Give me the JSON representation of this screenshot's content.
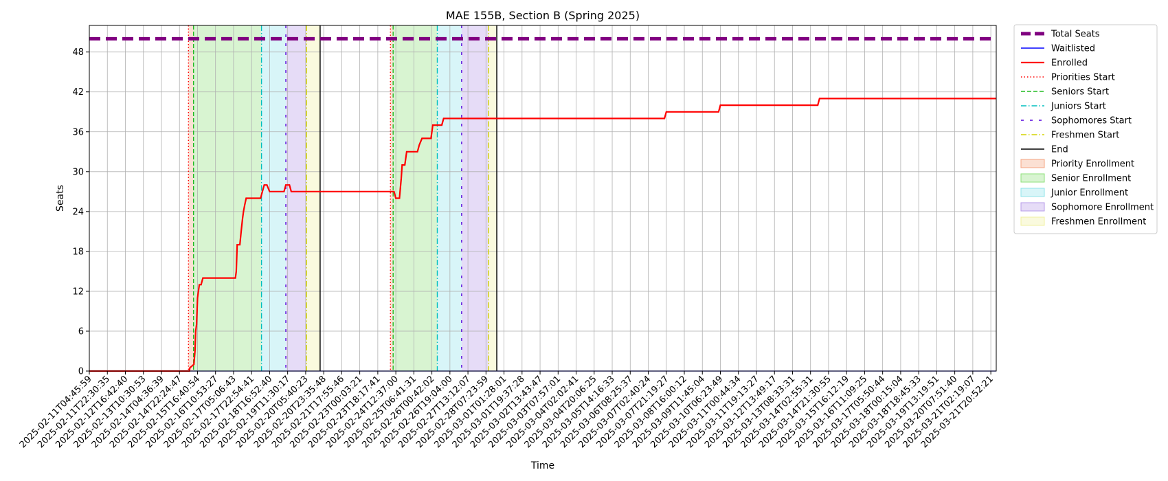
{
  "chart_data": {
    "type": "line",
    "title": "MAE 155B, Section B (Spring 2025)",
    "xlabel": "Time",
    "ylabel": "Seats",
    "ylim": [
      0,
      52
    ],
    "yticks": [
      0,
      6,
      12,
      18,
      24,
      30,
      36,
      42,
      48
    ],
    "x_ticks": [
      "2025-02-11T04:45:59",
      "2025-02-11T22:30:35",
      "2025-02-12T16:42:40",
      "2025-02-13T10:30:53",
      "2025-02-14T04:36:39",
      "2025-02-14T22:24:47",
      "2025-02-15T16:40:54",
      "2025-02-16T10:53:27",
      "2025-02-17T05:06:43",
      "2025-02-17T22:54:41",
      "2025-02-18T16:52:40",
      "2025-02-19T11:30:17",
      "2025-02-20T05:40:23",
      "2025-02-20T23:35:48",
      "2025-02-21T17:55:46",
      "2025-02-23T00:03:21",
      "2025-02-23T18:17:41",
      "2025-02-24T12:37:00",
      "2025-02-25T06:41:31",
      "2025-02-26T00:42:02",
      "2025-02-26T19:04:00",
      "2025-02-27T13:12:07",
      "2025-02-28T07:23:59",
      "2025-03-01T01:28:01",
      "2025-03-01T19:37:28",
      "2025-03-02T13:43:47",
      "2025-03-03T07:57:01",
      "2025-03-04T02:02:41",
      "2025-03-04T20:06:25",
      "2025-03-05T14:16:33",
      "2025-03-06T08:25:37",
      "2025-03-07T02:40:24",
      "2025-03-07T21:19:27",
      "2025-03-08T16:00:12",
      "2025-03-09T11:45:04",
      "2025-03-10T06:23:49",
      "2025-03-11T00:44:34",
      "2025-03-11T19:13:27",
      "2025-03-12T13:49:17",
      "2025-03-13T08:33:31",
      "2025-03-14T02:55:31",
      "2025-03-14T21:30:55",
      "2025-03-15T16:12:19",
      "2025-03-16T11:09:25",
      "2025-03-17T05:50:44",
      "2025-03-18T00:15:04",
      "2025-03-18T18:45:33",
      "2025-03-19T13:19:51",
      "2025-03-20T07:51:40",
      "2025-03-21T02:19:07",
      "2025-03-21T20:52:21"
    ],
    "x_range": [
      0,
      50.3
    ],
    "total_seats": 50,
    "series": [
      {
        "name": "Enrolled",
        "color": "#ff0000",
        "x": [
          0,
          5.55,
          5.58,
          5.8,
          5.86,
          5.9,
          5.95,
          6.0,
          6.05,
          6.1,
          6.2,
          6.3,
          6.45,
          6.6,
          8.1,
          8.15,
          8.2,
          8.35,
          8.42,
          8.5,
          8.55,
          8.62,
          8.7,
          8.8,
          9.5,
          9.6,
          9.7,
          9.85,
          10.0,
          10.1,
          10.8,
          10.9,
          11.1,
          11.2,
          16.9,
          17.0,
          17.2,
          17.3,
          17.35,
          17.5,
          17.6,
          18.2,
          18.3,
          18.45,
          18.55,
          18.95,
          19.05,
          19.55,
          19.65,
          21.0,
          31.9,
          32.0,
          34.9,
          35.0,
          40.4,
          40.5,
          50.3
        ],
        "y": [
          0,
          0,
          0.5,
          1,
          3,
          6,
          7,
          11,
          12,
          13,
          13,
          14,
          14,
          14,
          14,
          15,
          19,
          19,
          21,
          23,
          24,
          25,
          26,
          26,
          26,
          27,
          28,
          28,
          27,
          27,
          27,
          28,
          28,
          27,
          27,
          26,
          26,
          29,
          31,
          31,
          33,
          33,
          34,
          35,
          35,
          35,
          37,
          37,
          38,
          38,
          38,
          39,
          39,
          40,
          40,
          41,
          41
        ]
      },
      {
        "name": "Waitlisted",
        "color": "#0000ff",
        "x": [
          0,
          50.3
        ],
        "y": [
          0,
          0
        ]
      }
    ],
    "regions": [
      {
        "name": "Priority Enrollment",
        "color": "#f4a582",
        "start": 5.5,
        "end": 5.78
      },
      {
        "name": "Senior Enrollment",
        "color": "#8ee07a",
        "start": 5.78,
        "end": 9.55
      },
      {
        "name": "Junior Enrollment",
        "color": "#8fe3ea",
        "start": 9.55,
        "end": 10.9
      },
      {
        "name": "Sophomore Enrollment",
        "color": "#b79be8",
        "start": 10.9,
        "end": 12.05
      },
      {
        "name": "Freshmen Enrollment",
        "color": "#f0f0a0",
        "start": 12.05,
        "end": 12.8
      },
      {
        "name": "Priority Enrollment",
        "color": "#f4a582",
        "start": 16.7,
        "end": 16.85
      },
      {
        "name": "Senior Enrollment",
        "color": "#8ee07a",
        "start": 16.85,
        "end": 19.3
      },
      {
        "name": "Junior Enrollment",
        "color": "#8fe3ea",
        "start": 19.3,
        "end": 20.65
      },
      {
        "name": "Sophomore Enrollment",
        "color": "#b79be8",
        "start": 20.65,
        "end": 22.15
      },
      {
        "name": "Freshmen Enrollment",
        "color": "#f0f0a0",
        "start": 22.15,
        "end": 22.6
      }
    ],
    "markers": [
      {
        "name": "Priorities Start",
        "color": "#ff0000",
        "style": "dotted",
        "x": [
          5.5,
          16.7
        ]
      },
      {
        "name": "Seniors Start",
        "color": "#22bb22",
        "style": "dashed",
        "x": [
          5.78,
          16.85
        ]
      },
      {
        "name": "Juniors Start",
        "color": "#00bfbf",
        "style": "dashdot",
        "x": [
          9.55,
          19.3
        ]
      },
      {
        "name": "Sophomores Start",
        "color": "#5500dd",
        "style": "loosedash",
        "x": [
          10.9,
          20.65
        ]
      },
      {
        "name": "Freshmen Start",
        "color": "#d4d400",
        "style": "dashdot",
        "x": [
          12.05,
          22.15
        ]
      },
      {
        "name": "End",
        "color": "#000000",
        "style": "solid",
        "x": [
          12.8,
          22.6
        ]
      }
    ],
    "legend": {
      "placement": "outside-right-top",
      "entries": [
        {
          "label": "Total Seats",
          "kind": "line",
          "color": "#800080",
          "style": "thickdash"
        },
        {
          "label": "Waitlisted",
          "kind": "line",
          "color": "#0000ff",
          "style": "solid"
        },
        {
          "label": "Enrolled",
          "kind": "line",
          "color": "#ff0000",
          "style": "solid"
        },
        {
          "label": "Priorities Start",
          "kind": "line",
          "color": "#ff0000",
          "style": "dotted"
        },
        {
          "label": "Seniors Start",
          "kind": "line",
          "color": "#22bb22",
          "style": "dashed"
        },
        {
          "label": "Juniors Start",
          "kind": "line",
          "color": "#00bfbf",
          "style": "dashdot"
        },
        {
          "label": "Sophomores Start",
          "kind": "line",
          "color": "#5500dd",
          "style": "loosedash"
        },
        {
          "label": "Freshmen Start",
          "kind": "line",
          "color": "#d4d400",
          "style": "dashdot"
        },
        {
          "label": "End",
          "kind": "line",
          "color": "#000000",
          "style": "solid"
        },
        {
          "label": "Priority Enrollment",
          "kind": "patch",
          "color": "#f4a582"
        },
        {
          "label": "Senior Enrollment",
          "kind": "patch",
          "color": "#8ee07a"
        },
        {
          "label": "Junior Enrollment",
          "kind": "patch",
          "color": "#8fe3ea"
        },
        {
          "label": "Sophomore Enrollment",
          "kind": "patch",
          "color": "#b79be8"
        },
        {
          "label": "Freshmen Enrollment",
          "kind": "patch",
          "color": "#f0f0a0"
        }
      ]
    },
    "grid": true
  }
}
